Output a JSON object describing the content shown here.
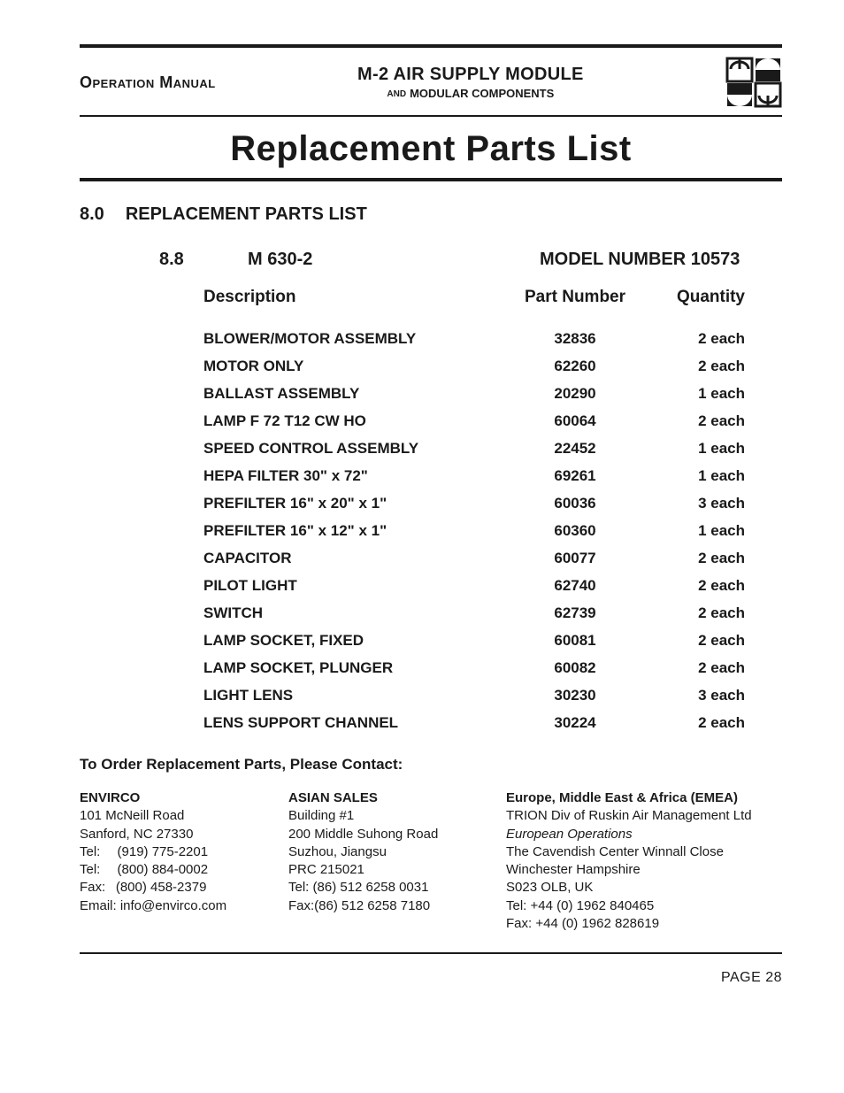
{
  "header": {
    "left": "Operation Manual",
    "center_line1": "M-2 AIR SUPPLY MODULE",
    "center_and": "AND",
    "center_line2": "MODULAR COMPONENTS"
  },
  "title": "Replacement Parts List",
  "section": {
    "num": "8.0",
    "label": "REPLACEMENT PARTS LIST"
  },
  "subsection": {
    "num": "8.8",
    "name": "M 630-2",
    "model": "MODEL NUMBER 10573"
  },
  "table": {
    "columns": [
      "Description",
      "Part Number",
      "Quantity"
    ],
    "rows": [
      [
        "BLOWER/MOTOR ASSEMBLY",
        "32836",
        "2 each"
      ],
      [
        "MOTOR ONLY",
        "62260",
        "2 each"
      ],
      [
        "BALLAST ASSEMBLY",
        "20290",
        "1 each"
      ],
      [
        "LAMP  F 72 T12 CW HO",
        "60064",
        "2 each"
      ],
      [
        "SPEED CONTROL ASSEMBLY",
        "22452",
        "1 each"
      ],
      [
        "HEPA FILTER 30\" x 72\"",
        "69261",
        "1 each"
      ],
      [
        "PREFILTER   16\" x 20\" x 1\"",
        "60036",
        "3 each"
      ],
      [
        "PREFILTER   16\" x 12\" x 1\"",
        "60360",
        "1 each"
      ],
      [
        "CAPACITOR",
        "60077",
        "2 each"
      ],
      [
        "PILOT LIGHT",
        "62740",
        "2 each"
      ],
      [
        "SWITCH",
        "62739",
        "2 each"
      ],
      [
        "LAMP SOCKET, FIXED",
        "60081",
        "2 each"
      ],
      [
        "LAMP SOCKET, PLUNGER",
        "60082",
        "2 each"
      ],
      [
        "LIGHT LENS",
        "30230",
        "3 each"
      ],
      [
        "LENS SUPPORT CHANNEL",
        "30224",
        "2 each"
      ]
    ]
  },
  "order_heading": "To Order Replacement Parts, Please Contact:",
  "contacts": {
    "c1": {
      "name": "ENVIRCO",
      "lines": [
        "101 McNeill Road",
        "Sanford, NC 27330",
        "Tel:  (919) 775-2201",
        "Tel:  (800) 884-0002",
        "Fax:  (800) 458-2379",
        "Email: info@envirco.com"
      ]
    },
    "c2": {
      "name": "ASIAN SALES",
      "lines": [
        "Building #1",
        "200 Middle Suhong Road",
        "Suzhou, Jiangsu",
        "PRC 215021",
        "Tel: (86) 512 6258 0031",
        "Fax:(86) 512 6258 7180"
      ]
    },
    "c3": {
      "name": "Europe, Middle East & Africa (EMEA)",
      "lines": [
        "TRION Div of Ruskin Air Management Ltd",
        "European Operations",
        "The Cavendish Center Winnall Close",
        "Winchester Hampshire",
        "S023 OLB, UK",
        "Tel: +44 (0) 1962 840465",
        "Fax: +44 (0) 1962 828619"
      ],
      "italic_idx": 1
    }
  },
  "page_label": "PAGE 28"
}
